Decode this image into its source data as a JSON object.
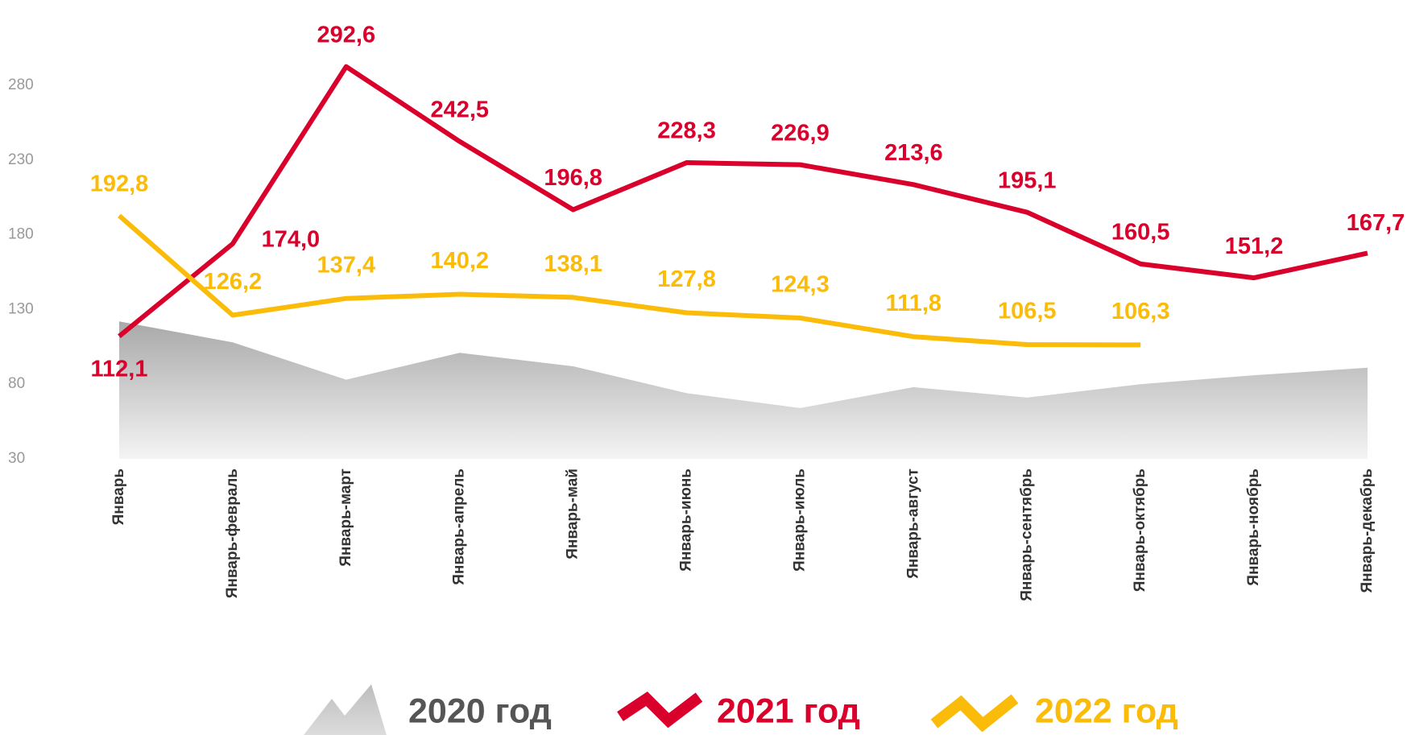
{
  "chart_data": {
    "type": "line",
    "categories": [
      "Январь",
      "Январь-февраль",
      "Январь-март",
      "Январь-апрель",
      "Январь-май",
      "Январь-июнь",
      "Январь-июль",
      "Январь-август",
      "Январь-сентябрь",
      "Январь-октябрь",
      "Январь-ноябрь",
      "Январь-декабрь"
    ],
    "series": [
      {
        "name": "2020 год",
        "color": "#c8c8c8",
        "kind": "area",
        "values": [
          122,
          108,
          83,
          101,
          92,
          74,
          64,
          78,
          71,
          80,
          86,
          91
        ]
      },
      {
        "name": "2021 год",
        "color": "#d9002c",
        "values": [
          112.1,
          174.0,
          292.6,
          242.5,
          196.8,
          228.3,
          226.9,
          213.6,
          195.1,
          160.5,
          151.2,
          167.7
        ],
        "value_labels": [
          "112,1",
          "174,0",
          "292,6",
          "242,5",
          "196,8",
          "228,3",
          "226,9",
          "213,6",
          "195,1",
          "160,5",
          "151,2",
          "167,7"
        ]
      },
      {
        "name": "2022 год",
        "color": "#fbbc09",
        "values": [
          192.8,
          126.2,
          137.4,
          140.2,
          138.1,
          127.8,
          124.3,
          111.8,
          106.5,
          106.3,
          null,
          null
        ],
        "value_labels": [
          "192,8",
          "126,2",
          "137,4",
          "140,2",
          "138,1",
          "127,8",
          "124,3",
          "111,8",
          "106,5",
          "106,3",
          null,
          null
        ]
      }
    ],
    "ylim": [
      30,
      300
    ],
    "yticks": [
      30,
      80,
      130,
      180,
      230,
      280
    ],
    "grid": false,
    "legend": "bottom"
  }
}
